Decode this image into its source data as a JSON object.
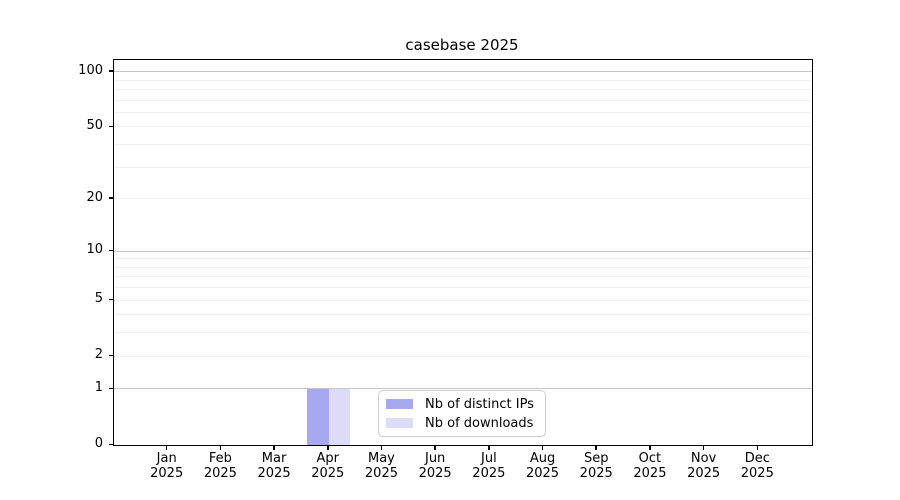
{
  "chart_data": {
    "type": "bar",
    "title": "casebase 2025",
    "categories": [
      "Jan",
      "Feb",
      "Mar",
      "Apr",
      "May",
      "Jun",
      "Jul",
      "Aug",
      "Sep",
      "Oct",
      "Nov",
      "Dec"
    ],
    "year": "2025",
    "series": [
      {
        "name": "Nb of distinct IPs",
        "color": "#a8a8f0",
        "values": [
          0,
          0,
          0,
          1,
          0,
          0,
          0,
          0,
          0,
          0,
          0,
          0
        ]
      },
      {
        "name": "Nb of downloads",
        "color": "#dcdcf8",
        "values": [
          0,
          0,
          0,
          1,
          0,
          0,
          0,
          0,
          0,
          0,
          0,
          0
        ]
      }
    ],
    "xlabel": "",
    "ylabel": "",
    "y_axis": {
      "scale": "log1p",
      "ticks": [
        0,
        1,
        2,
        5,
        10,
        20,
        50,
        100
      ],
      "ylim": [
        0,
        115.6
      ]
    },
    "grid": {
      "on": true,
      "major_values": [
        1,
        10,
        100
      ],
      "minor_values": [
        2,
        3,
        4,
        5,
        6,
        7,
        8,
        9,
        20,
        30,
        40,
        50,
        60,
        70,
        80,
        90
      ],
      "major_color": "#c6c6c6",
      "minor_color": "#efefef"
    },
    "legend": {
      "position": "lower center"
    },
    "bar_width_fraction": 0.4
  }
}
